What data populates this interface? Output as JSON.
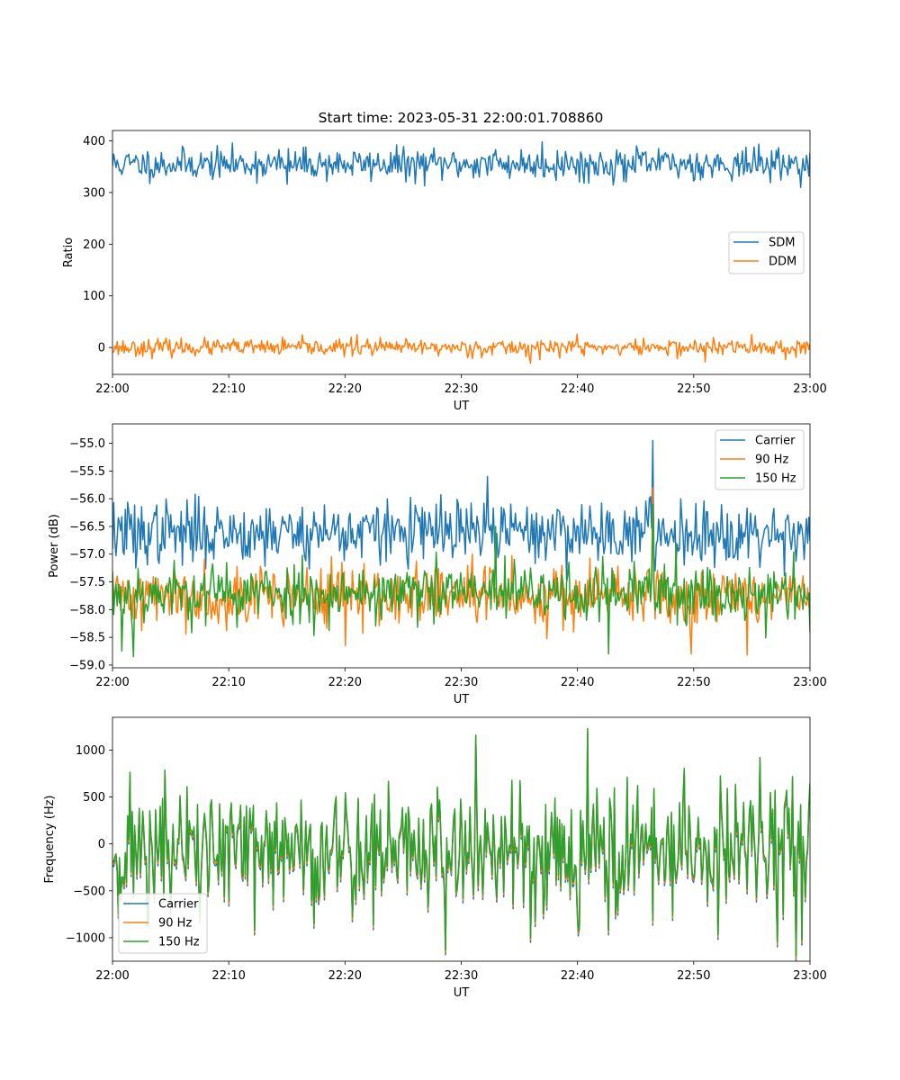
{
  "figure_title": "Start time: 2023-05-31 22:00:01.708860",
  "colors": {
    "blue": "#1f77b4",
    "orange": "#ff7f0e",
    "green": "#2ca02c"
  },
  "chart_data": [
    {
      "type": "line",
      "xlabel": "UT",
      "ylabel": "Ratio",
      "xlim": [
        0,
        60
      ],
      "ylim": [
        -52,
        420
      ],
      "xticks": [
        0,
        10,
        20,
        30,
        40,
        50,
        60
      ],
      "xtick_labels": [
        "22:00",
        "22:10",
        "22:20",
        "22:30",
        "22:40",
        "22:50",
        "23:00"
      ],
      "yticks": [
        0,
        100,
        200,
        300,
        400
      ],
      "ytick_labels": [
        "0",
        "100",
        "200",
        "300",
        "400"
      ],
      "legend_position": "center-right",
      "series": [
        {
          "name": "SDM",
          "color": "#1f77b4",
          "mean": 355,
          "noise": 15,
          "seed": 11,
          "spikes": [
            [
              37,
              398
            ],
            [
              15,
              316
            ],
            [
              26,
              317
            ],
            [
              41,
              318
            ],
            [
              44,
              322
            ],
            [
              47,
              385
            ],
            [
              33,
              383
            ]
          ]
        },
        {
          "name": "DDM",
          "color": "#ff7f0e",
          "mean": 0,
          "noise": 8,
          "seed": 23,
          "spikes": [
            [
              21,
              25
            ],
            [
              36,
              -30
            ],
            [
              51,
              -28
            ],
            [
              55,
              25
            ],
            [
              40,
              26
            ]
          ]
        }
      ]
    },
    {
      "type": "line",
      "xlabel": "UT",
      "ylabel": "Power (dB)",
      "xlim": [
        0,
        60
      ],
      "ylim": [
        -59.05,
        -54.65
      ],
      "xticks": [
        0,
        10,
        20,
        30,
        40,
        50,
        60
      ],
      "xtick_labels": [
        "22:00",
        "22:10",
        "22:20",
        "22:30",
        "22:40",
        "22:50",
        "23:00"
      ],
      "yticks": [
        -59.0,
        -58.5,
        -58.0,
        -57.5,
        -57.0,
        -56.5,
        -56.0,
        -55.5,
        -55.0
      ],
      "ytick_labels": [
        "−59.0",
        "−58.5",
        "−58.0",
        "−57.5",
        "−57.0",
        "−56.5",
        "−56.0",
        "−55.5",
        "−55.0"
      ],
      "legend_position": "top-right",
      "series": [
        {
          "name": "Carrier",
          "color": "#1f77b4",
          "mean": -56.6,
          "noise": 0.28,
          "seed": 37,
          "spikes": [
            [
              46.5,
              -54.95
            ],
            [
              32.3,
              -55.6
            ],
            [
              2,
              -57.25
            ],
            [
              6,
              -57.2
            ],
            [
              46.7,
              -57.3
            ]
          ]
        },
        {
          "name": "90 Hz",
          "color": "#ff7f0e",
          "mean": -57.75,
          "noise": 0.27,
          "seed": 41,
          "spikes": [
            [
              46.5,
              -55.8
            ],
            [
              20,
              -58.65
            ],
            [
              54.6,
              -58.82
            ],
            [
              49.8,
              -58.8
            ],
            [
              32,
              -57.3
            ],
            [
              31,
              -57.0
            ]
          ]
        },
        {
          "name": "150 Hz",
          "color": "#2ca02c",
          "mean": -57.7,
          "noise": 0.27,
          "seed": 53,
          "spikes": [
            [
              1.8,
              -58.85
            ],
            [
              0.8,
              -58.75
            ],
            [
              42.7,
              -58.8
            ],
            [
              46.5,
              -56.1
            ],
            [
              33,
              -56.5
            ],
            [
              48.5,
              -56.8
            ]
          ]
        }
      ]
    },
    {
      "type": "line",
      "xlabel": "UT",
      "ylabel": "Frequency (Hz)",
      "xlim": [
        0,
        60
      ],
      "ylim": [
        -1250,
        1350
      ],
      "xticks": [
        0,
        10,
        20,
        30,
        40,
        50,
        60
      ],
      "xtick_labels": [
        "22:00",
        "22:10",
        "22:20",
        "22:30",
        "22:40",
        "22:50",
        "23:00"
      ],
      "yticks": [
        -1000,
        -500,
        0,
        500,
        1000
      ],
      "ytick_labels": [
        "−1000",
        "−500",
        "0",
        "500",
        "1000"
      ],
      "legend_position": "bottom-left",
      "series": [
        {
          "name": "Carrier",
          "color": "#1f77b4",
          "mean": -60,
          "noise": 360,
          "seed": 71,
          "offset": -50,
          "spikes": [
            [
              40.9,
              1230
            ],
            [
              28.6,
              -1130
            ],
            [
              31.3,
              1160
            ],
            [
              12.2,
              -920
            ],
            [
              42.7,
              -920
            ],
            [
              36,
              -1000
            ]
          ]
        },
        {
          "name": "90 Hz",
          "color": "#ff7f0e",
          "mean": -60,
          "noise": 360,
          "seed": 71,
          "offset": -25,
          "spikes": [
            [
              40.9,
              1230
            ],
            [
              28.6,
              -1130
            ],
            [
              31.3,
              1160
            ],
            [
              12.2,
              -920
            ],
            [
              42.7,
              -920
            ],
            [
              36,
              -1000
            ]
          ]
        },
        {
          "name": "150 Hz",
          "color": "#2ca02c",
          "mean": -60,
          "noise": 360,
          "seed": 71,
          "offset": 0,
          "spikes": [
            [
              40.9,
              1230
            ],
            [
              28.6,
              -1130
            ],
            [
              31.3,
              1160
            ],
            [
              12.2,
              -920
            ],
            [
              42.7,
              -920
            ],
            [
              36,
              -1000
            ]
          ]
        }
      ]
    }
  ]
}
